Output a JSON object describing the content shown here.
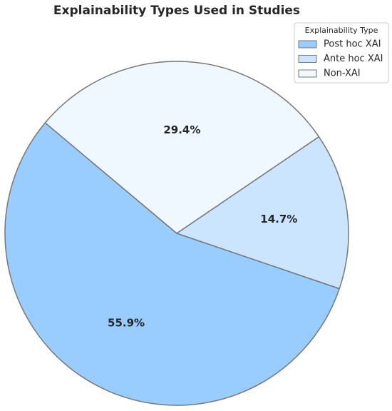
{
  "chart_data": {
    "type": "pie",
    "title": "Explainability Types Used in Studies",
    "categories": [
      "Post hoc XAI",
      "Ante hoc XAI",
      "Non-XAI"
    ],
    "values": [
      55.9,
      14.7,
      29.4
    ],
    "value_labels": [
      "55.9%",
      "14.7%",
      "29.4%"
    ],
    "colors": [
      "#99ccff",
      "#cce5ff",
      "#f0f8ff"
    ],
    "legend_title": "Explainability Type",
    "legend": "upper right"
  }
}
